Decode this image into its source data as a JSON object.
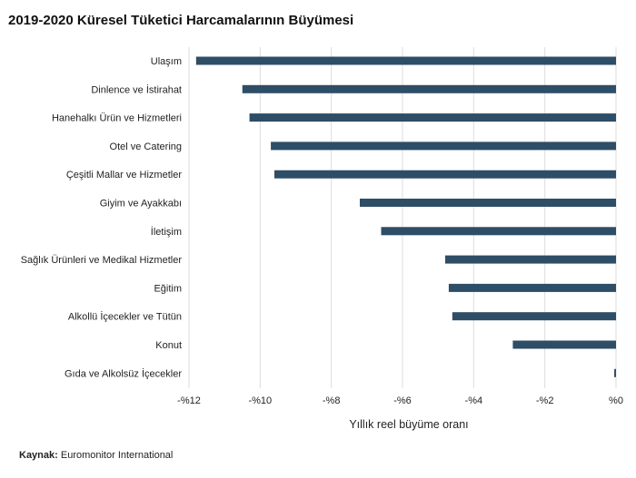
{
  "chart_data": {
    "type": "bar",
    "orientation": "horizontal",
    "title": "2019-2020 Küresel Tüketici Harcamalarının Büyümesi",
    "xlabel": "Yıllık reel büyüme oranı",
    "ylabel": "",
    "categories": [
      "Ulaşım",
      "Dinlence ve İstirahat",
      "Hanehalkı Ürün ve Hizmetleri",
      "Otel ve Catering",
      "Çeşitli Mallar ve Hizmetler",
      "Giyim ve Ayakkabı",
      "İletişim",
      "Sağlık Ürünleri ve Medikal Hizmetler",
      "Eğitim",
      "Alkollü İçecekler ve Tütün",
      "Konut",
      "Gıda ve Alkolsüz İçecekler"
    ],
    "values": [
      -11.8,
      -10.5,
      -10.3,
      -9.7,
      -9.6,
      -7.2,
      -6.6,
      -4.8,
      -4.7,
      -4.6,
      -2.9,
      -0.05
    ],
    "xlim": [
      -12,
      0
    ],
    "xticks": [
      -12,
      -10,
      -8,
      -6,
      -4,
      -2,
      0
    ],
    "xtick_labels": [
      "-%12",
      "-%10",
      "-%8",
      "-%6",
      "-%4",
      "-%2",
      "%0"
    ],
    "grid": "vertical",
    "legend": "none",
    "bar_color": "#2e4d66",
    "grid_color": "#dcdcdc"
  },
  "source": {
    "label": "Kaynak:",
    "text": "Euromonitor International"
  }
}
